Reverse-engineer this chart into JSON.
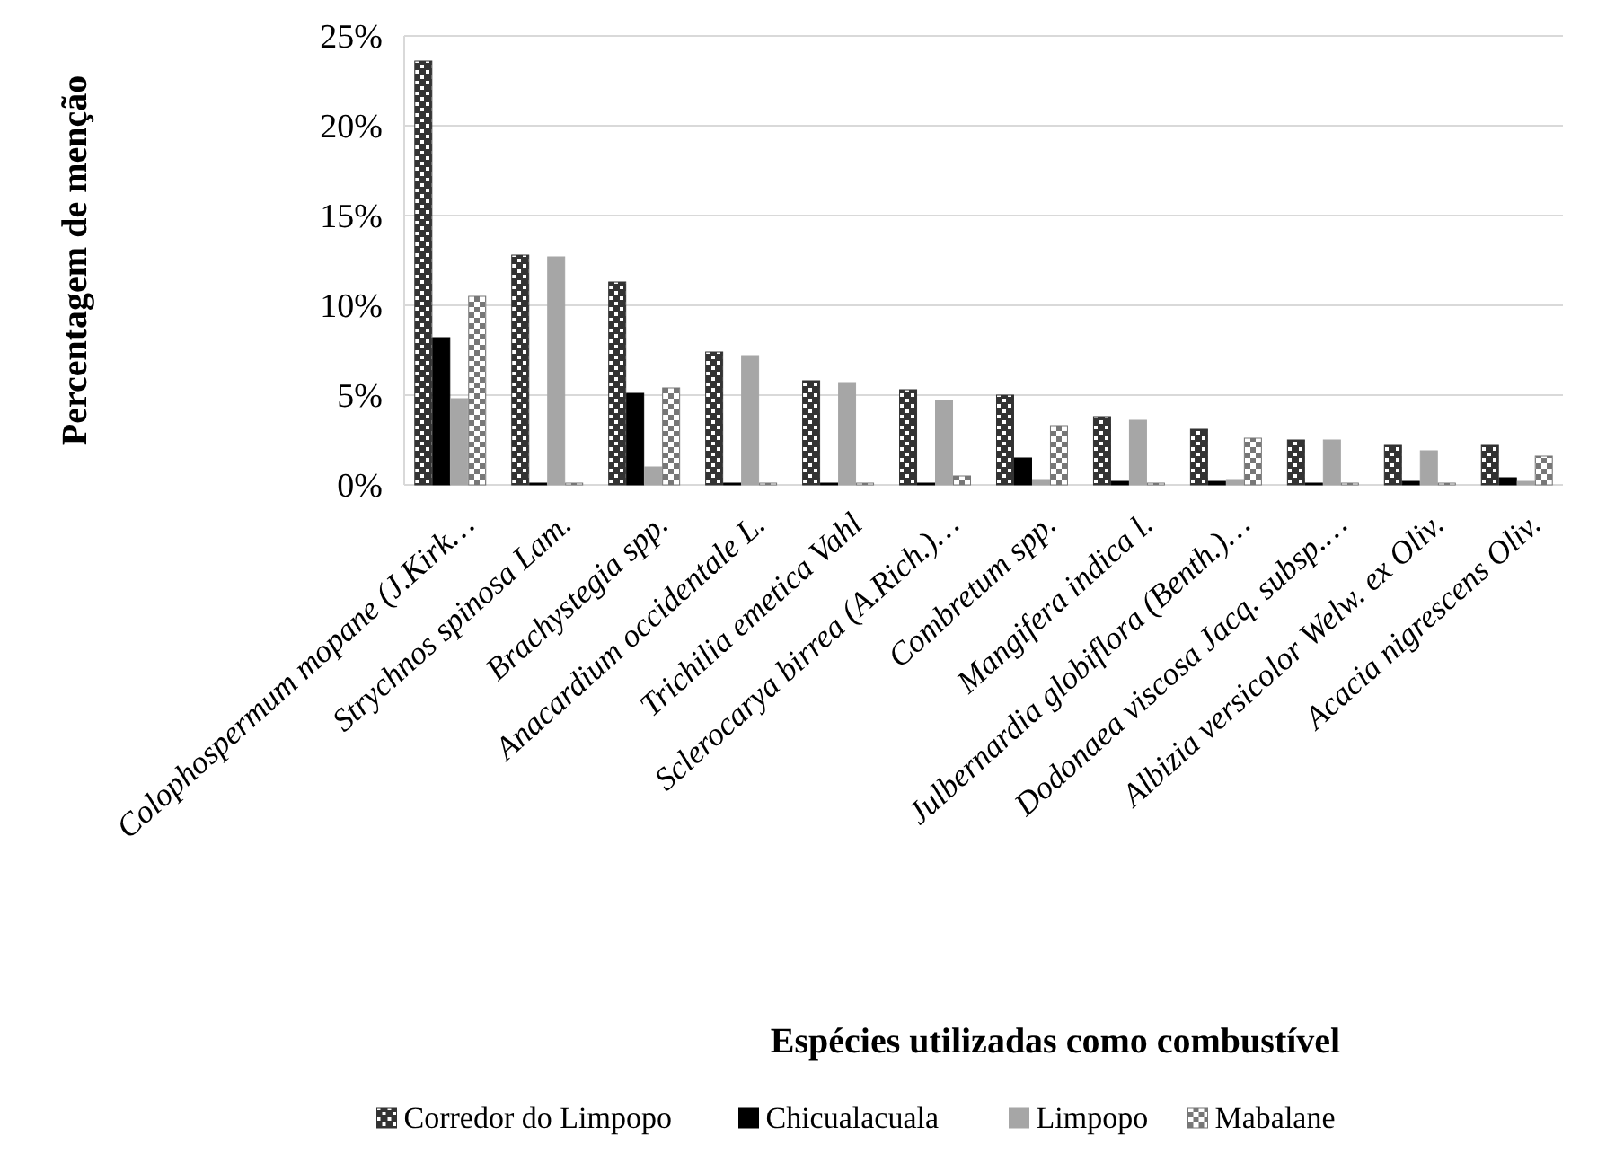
{
  "chart_data": {
    "type": "bar",
    "xlabel": "Espécies utilizadas como combustível",
    "ylabel": "Percentagem de menção",
    "categories": [
      "Colophospermum mopane (J.Kirk…",
      "Strychnos spinosa Lam.",
      "Brachystegia spp.",
      "Anacardium occidentale L.",
      "Trichilia emetica Vahl",
      "Sclerocarya birrea (A.Rich.)…",
      "Combretum spp.",
      "Mangifera indica l.",
      "Julbernardia globiflora (Benth.)…",
      "Dodonaea viscosa Jacq. subsp.…",
      "Albizia versicolor Welw. ex Oliv.",
      "Acacia nigrescens Oliv."
    ],
    "series": [
      {
        "name": "Corredor do Limpopo",
        "color": "#333333",
        "values": [
          23.6,
          12.8,
          11.3,
          7.4,
          5.8,
          5.3,
          5.0,
          3.8,
          3.1,
          2.5,
          2.2,
          2.2
        ]
      },
      {
        "name": "Chicualacuala",
        "color": "#000000",
        "values": [
          8.2,
          0.1,
          5.1,
          0.1,
          0.1,
          0.1,
          1.5,
          0.2,
          0.2,
          0.1,
          0.2,
          0.4
        ]
      },
      {
        "name": "Limpopo",
        "color": "#a6a6a6",
        "values": [
          4.8,
          12.7,
          1.0,
          7.2,
          5.7,
          4.7,
          0.3,
          3.6,
          0.3,
          2.5,
          1.9,
          0.2
        ]
      },
      {
        "name": "Mabalane",
        "color": "#777777",
        "values": [
          10.5,
          0.1,
          5.4,
          0.1,
          0.1,
          0.5,
          3.3,
          0.1,
          2.6,
          0.1,
          0.1,
          1.6
        ]
      }
    ],
    "ylim": [
      0,
      25
    ],
    "yticks": [
      {
        "value": 0,
        "label": "0%"
      },
      {
        "value": 5,
        "label": "5%"
      },
      {
        "value": 10,
        "label": "10%"
      },
      {
        "value": 15,
        "label": "15%"
      },
      {
        "value": 20,
        "label": "20%"
      },
      {
        "value": 25,
        "label": "25%"
      }
    ],
    "grid": "y",
    "legend": "bottom"
  }
}
